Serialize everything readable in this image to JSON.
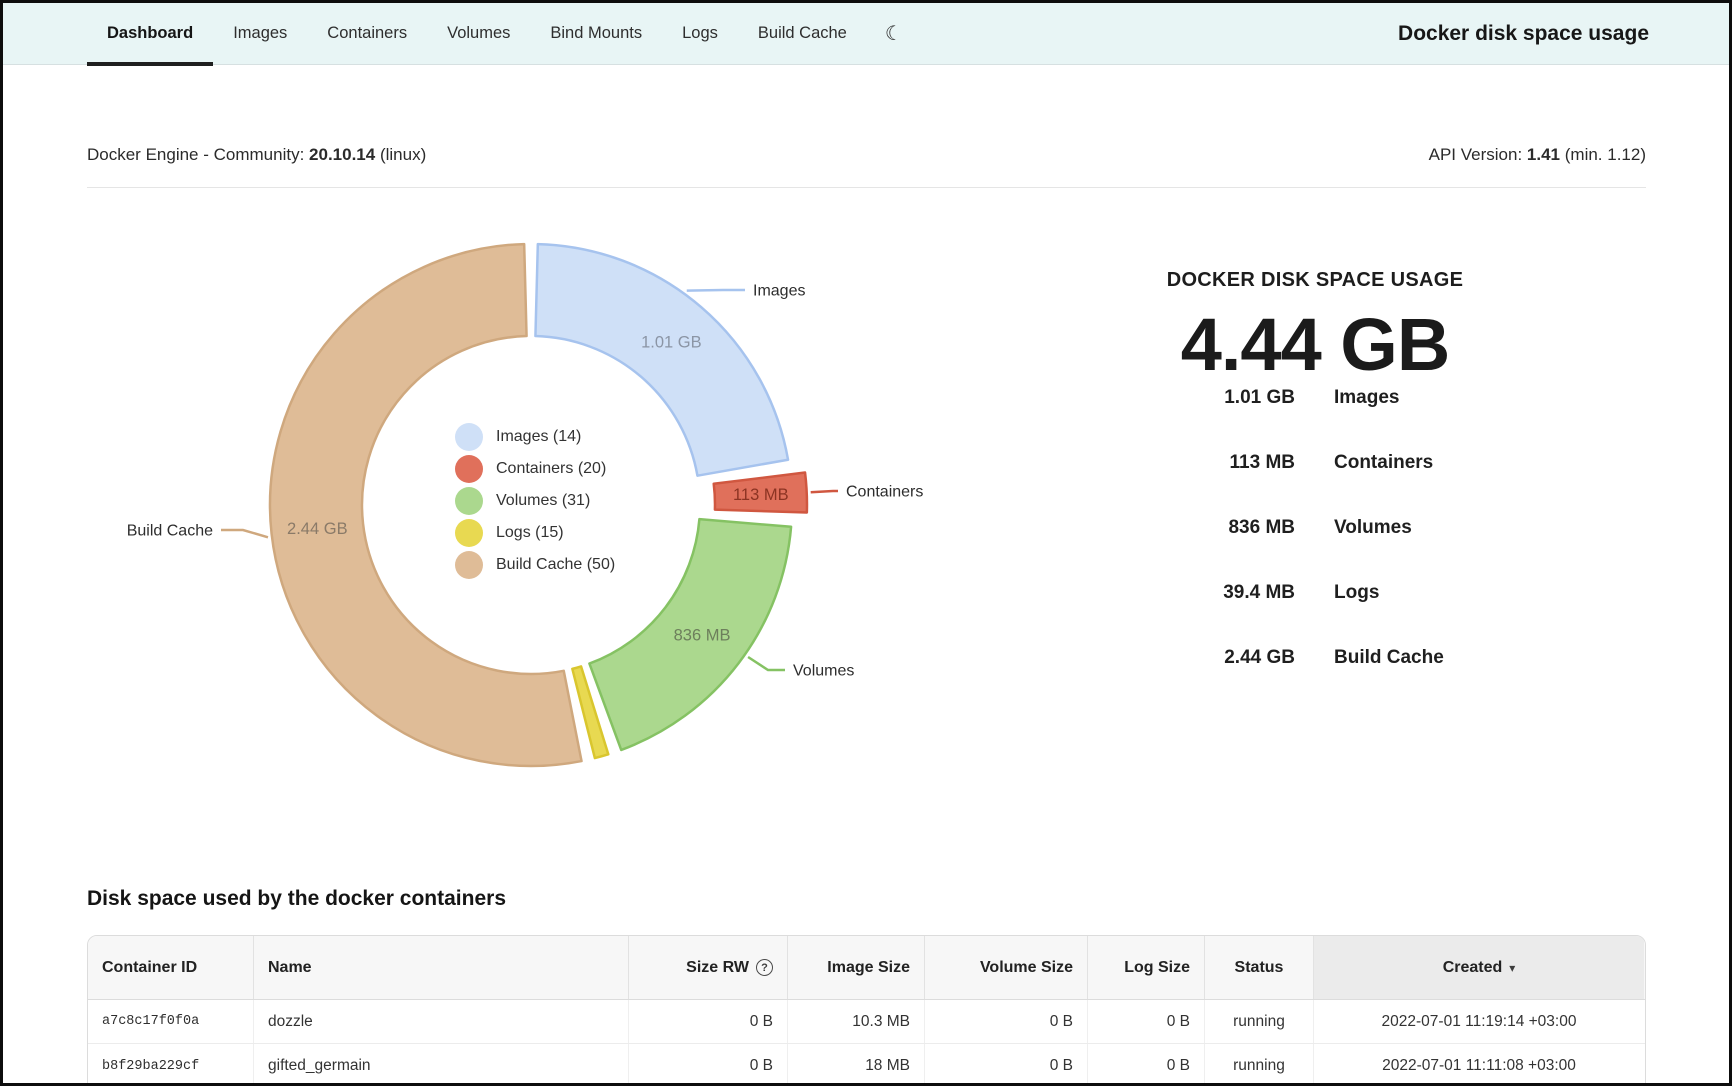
{
  "window": {
    "title": "Docker disk space usage"
  },
  "nav": {
    "tabs": [
      {
        "label": "Dashboard",
        "active": true
      },
      {
        "label": "Images"
      },
      {
        "label": "Containers"
      },
      {
        "label": "Volumes"
      },
      {
        "label": "Bind Mounts"
      },
      {
        "label": "Logs"
      },
      {
        "label": "Build Cache"
      }
    ],
    "moon_glyph": "☾"
  },
  "engine": {
    "label": "Docker Engine - Community:",
    "version": "20.10.14",
    "suffix": "(linux)",
    "api_label": "API Version:",
    "api_version": "1.41",
    "api_min": "(min. 1.12)"
  },
  "chart_data": {
    "type": "donut",
    "title": "DOCKER DISK SPACE USAGE",
    "total_display": "4.44 GB",
    "unit": "MB",
    "legend_position": "center",
    "segments": [
      {
        "label": "Images",
        "count": 14,
        "value_mb": 1010,
        "display": "1.01 GB",
        "fill": "#cfe0f7",
        "border": "#a6c3ee",
        "label_color": "#8b95a5",
        "callout": true
      },
      {
        "label": "Containers",
        "count": 20,
        "value_mb": 113,
        "display": "113 MB",
        "fill": "#e0705b",
        "border": "#d05740",
        "label_color": "#8c3423",
        "callout": true,
        "exploded": true
      },
      {
        "label": "Volumes",
        "count": 31,
        "value_mb": 836,
        "display": "836 MB",
        "fill": "#abd88e",
        "border": "#85c263",
        "label_color": "#6d7f5c",
        "callout": true
      },
      {
        "label": "Logs",
        "count": 15,
        "value_mb": 39.4,
        "display": "39.4 MB",
        "fill": "#e8d951",
        "border": "#d9c62e",
        "label_color": "#8a8030",
        "callout": false,
        "show_value_label": false
      },
      {
        "label": "Build Cache",
        "count": 50,
        "value_mb": 2440,
        "display": "2.44 GB",
        "fill": "#dfbc97",
        "border": "#cfa87e",
        "label_color": "#8a7a68",
        "callout": true
      }
    ]
  },
  "summary": {
    "title": "DOCKER DISK SPACE USAGE",
    "total": "4.44 GB",
    "items": [
      {
        "value": "1.01 GB",
        "label": "Images"
      },
      {
        "value": "113 MB",
        "label": "Containers"
      },
      {
        "value": "836 MB",
        "label": "Volumes"
      },
      {
        "value": "39.4 MB",
        "label": "Logs"
      },
      {
        "value": "2.44 GB",
        "label": "Build Cache"
      }
    ]
  },
  "containers_section": {
    "heading": "Disk space used by the docker containers",
    "columns": [
      {
        "label": "Container ID"
      },
      {
        "label": "Name"
      },
      {
        "label": "Size RW",
        "help_glyph": "?"
      },
      {
        "label": "Image Size"
      },
      {
        "label": "Volume Size"
      },
      {
        "label": "Log Size"
      },
      {
        "label": "Status"
      },
      {
        "label": "Created",
        "sort": "desc",
        "sort_glyph": "▾"
      }
    ],
    "rows": [
      {
        "id": "a7c8c17f0f0a",
        "name": "dozzle",
        "size_rw": "0 B",
        "image_size": "10.3 MB",
        "volume_size": "0 B",
        "log_size": "0 B",
        "status": "running",
        "created": "2022-07-01 11:19:14 +03:00"
      },
      {
        "id": "b8f29ba229cf",
        "name": "gifted_germain",
        "size_rw": "0 B",
        "image_size": "18 MB",
        "volume_size": "0 B",
        "log_size": "0 B",
        "status": "running",
        "created": "2022-07-01 11:11:08 +03:00"
      }
    ]
  }
}
